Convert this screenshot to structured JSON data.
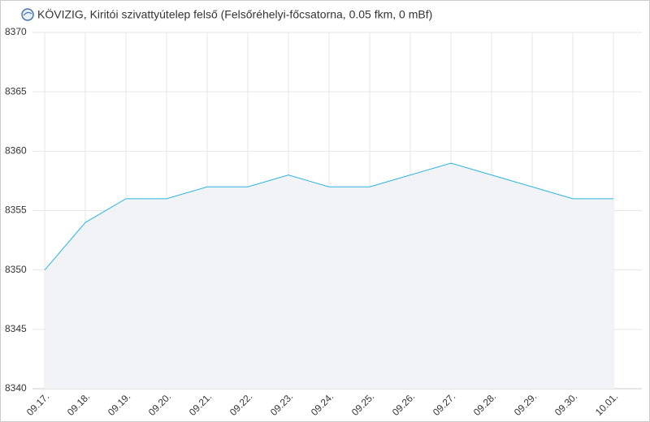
{
  "chart_data": {
    "type": "area",
    "title": "KÖVIZIG, Kiritói szivattyútelep felső (Felsőréhelyi-főcsatorna, 0.05 fkm, 0 mBf)",
    "categories": [
      "09.17.",
      "09.18.",
      "09.19.",
      "09.20.",
      "09.21.",
      "09.22.",
      "09.23.",
      "09.24.",
      "09.25.",
      "09.26.",
      "09.27.",
      "09.28.",
      "09.29.",
      "09.30.",
      "10.01."
    ],
    "values": [
      8350,
      8354,
      8356,
      8356,
      8357,
      8357,
      8358,
      8357,
      8357,
      8358,
      8359,
      8358,
      8357,
      8356,
      8356
    ],
    "color": "#2bb4e0",
    "ylim": [
      8340,
      8370
    ],
    "yticks": [
      8340,
      8345,
      8350,
      8355,
      8360,
      8365,
      8370
    ],
    "grid": true
  }
}
